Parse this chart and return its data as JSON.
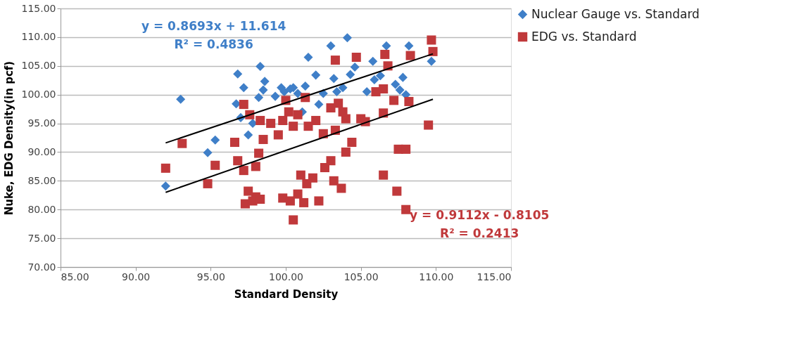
{
  "chart_data": {
    "type": "scatter",
    "xlabel": "Standard Density",
    "ylabel": "Nuke, EDG Density(in pcf)",
    "xlim": [
      85,
      115
    ],
    "ylim": [
      70,
      115
    ],
    "xticks": [
      {
        "value": 85,
        "label": "85.00"
      },
      {
        "value": 90,
        "label": "90.00"
      },
      {
        "value": 95,
        "label": "95.00"
      },
      {
        "value": 100,
        "label": "100.00"
      },
      {
        "value": 105,
        "label": "105.00"
      },
      {
        "value": 110,
        "label": "110.00"
      },
      {
        "value": 115,
        "label": "115.00"
      }
    ],
    "yticks": [
      {
        "value": 70,
        "label": "70.00"
      },
      {
        "value": 75,
        "label": "75.00"
      },
      {
        "value": 80,
        "label": "80.00"
      },
      {
        "value": 85,
        "label": "85.00"
      },
      {
        "value": 90,
        "label": "90.00"
      },
      {
        "value": 95,
        "label": "95.00"
      },
      {
        "value": 100,
        "label": "100.00"
      },
      {
        "value": 105,
        "label": "105.00"
      },
      {
        "value": 110,
        "label": "110.00"
      },
      {
        "value": 115,
        "label": "115.00"
      }
    ],
    "grid": "y",
    "legend": "right",
    "annotations": [
      "y = 0.8693x + 11.614\nR² = 0.4836",
      "y = 0.9112x - 0.8105\nR² = 0.2413"
    ],
    "series": [
      {
        "name": "Nuclear Gauge vs. Standard",
        "color": "#3f7fc8",
        "marker": "diamond",
        "x": [
          92.0,
          93.0,
          94.8,
          95.3,
          96.7,
          96.8,
          97.2,
          97.0,
          97.5,
          97.8,
          98.3,
          98.5,
          98.6,
          98.2,
          99.7,
          99.9,
          100.3,
          100.8,
          101.1,
          101.5,
          101.3,
          102.0,
          102.2,
          102.5,
          103.0,
          103.2,
          103.4,
          104.1,
          103.8,
          104.3,
          104.6,
          105.4,
          105.8,
          106.3,
          105.9,
          106.7,
          106.8,
          107.3,
          107.6,
          108.2,
          108.0,
          109.7,
          107.8,
          100.5,
          99.3
        ],
        "values": [
          84.1,
          99.2,
          89.9,
          92.1,
          98.4,
          103.6,
          101.2,
          96.0,
          93.0,
          95.0,
          104.9,
          100.8,
          102.3,
          99.5,
          101.2,
          100.5,
          101.0,
          100.2,
          97.0,
          106.5,
          101.5,
          103.4,
          98.3,
          100.2,
          108.5,
          102.8,
          100.5,
          109.9,
          101.2,
          103.5,
          104.8,
          100.5,
          105.8,
          103.3,
          102.6,
          108.5,
          null,
          101.8,
          100.8,
          108.5,
          100.0,
          105.8,
          103.0,
          101.2,
          99.7
        ]
      },
      {
        "name": "EDG vs. Standard",
        "color": "#c0393b",
        "marker": "square",
        "x": [
          92.0,
          93.1,
          94.8,
          95.3,
          96.6,
          96.8,
          97.2,
          97.3,
          97.5,
          97.8,
          98.0,
          98.3,
          97.2,
          97.6,
          98.3,
          98.5,
          98.2,
          98.0,
          99.0,
          99.5,
          99.8,
          100.2,
          100.5,
          100.8,
          99.8,
          100.3,
          100.5,
          100.8,
          101.2,
          101.0,
          101.4,
          101.8,
          102.2,
          102.6,
          103.0,
          103.2,
          103.7,
          101.5,
          102.0,
          102.5,
          103.0,
          103.5,
          103.3,
          104.0,
          104.4,
          104.0,
          103.3,
          103.8,
          104.7,
          105.0,
          105.3,
          106.0,
          106.5,
          106.6,
          106.8,
          106.5,
          107.2,
          107.5,
          108.0,
          107.4,
          106.5,
          108.0,
          108.2,
          108.3,
          109.5,
          109.7,
          109.8,
          100.0,
          101.3
        ],
        "values": [
          87.2,
          91.5,
          84.5,
          87.7,
          91.7,
          88.5,
          86.8,
          81.0,
          83.2,
          81.5,
          82.2,
          81.8,
          98.3,
          96.5,
          95.5,
          92.2,
          89.8,
          87.5,
          95.0,
          93.0,
          95.5,
          97.0,
          94.5,
          96.5,
          82.0,
          81.5,
          78.2,
          82.7,
          81.2,
          86.0,
          84.5,
          85.5,
          81.5,
          87.3,
          88.5,
          85.0,
          83.7,
          94.5,
          95.5,
          93.2,
          97.7,
          98.5,
          93.8,
          95.8,
          91.7,
          90.0,
          106.0,
          97.0,
          106.5,
          95.8,
          95.3,
          100.5,
          101.0,
          107.0,
          105.0,
          96.8,
          99.0,
          90.5,
          90.5,
          83.2,
          86.0,
          80.0,
          98.8,
          106.8,
          94.7,
          109.5,
          107.5,
          99.0,
          99.5
        ]
      },
      {
        "type": "line",
        "color": "#000000",
        "x": [
          92.0,
          109.8
        ],
        "values": [
          91.6,
          107.1
        ]
      },
      {
        "type": "line",
        "color": "#000000",
        "x": [
          92.0,
          109.8
        ],
        "values": [
          83.0,
          99.2
        ]
      }
    ]
  }
}
